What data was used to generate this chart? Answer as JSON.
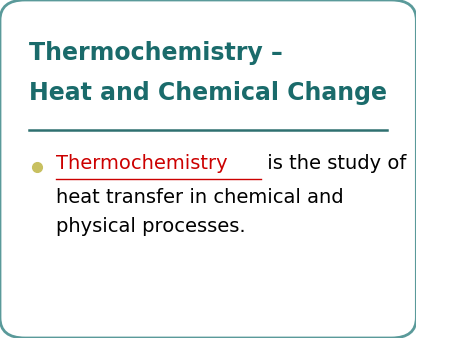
{
  "title_line1": "Thermochemistry –",
  "title_line2": "Heat and Chemical Change",
  "title_color": "#1a6b6b",
  "background_color": "#ffffff",
  "border_color": "#5a9a9a",
  "separator_color": "#2f7070",
  "bullet_color": "#c8c060",
  "bullet_text_red": "Thermochemistry",
  "bullet_text_black": " is the study of",
  "continuation_line1": "heat transfer in chemical and",
  "continuation_line2": "physical processes.",
  "body_text_color": "#000000",
  "red_color": "#cc0000",
  "title_fontsize": 17,
  "body_fontsize": 14
}
